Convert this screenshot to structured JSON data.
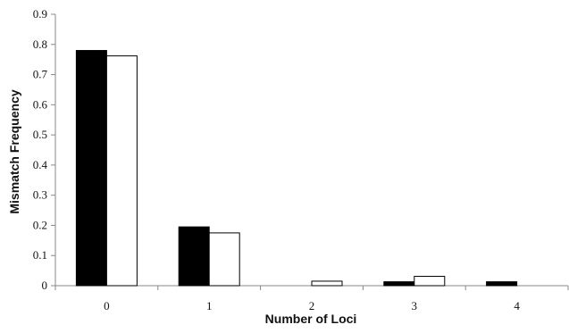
{
  "chart_data": {
    "type": "bar",
    "title": "",
    "xlabel": "Number of Loci",
    "ylabel": "Mismatch Frequency",
    "categories": [
      "0",
      "1",
      "2",
      "3",
      "4"
    ],
    "ylim": [
      0,
      0.9
    ],
    "yticks": [
      0,
      0.1,
      0.2,
      0.3,
      0.4,
      0.5,
      0.6,
      0.7,
      0.8,
      0.9
    ],
    "ytick_labels": [
      "0",
      "0.1",
      "0.2",
      "0.3",
      "0.4",
      "0.5",
      "0.6",
      "0.7",
      "0.8",
      "0.9"
    ],
    "grid": false,
    "legend": "none",
    "series": [
      {
        "values": [
          0.78,
          0.195,
          0.0,
          0.013,
          0.013
        ],
        "color": "#000000"
      },
      {
        "values": [
          0.762,
          0.175,
          0.015,
          0.031,
          0.0
        ],
        "color": "#ffffff"
      }
    ]
  }
}
